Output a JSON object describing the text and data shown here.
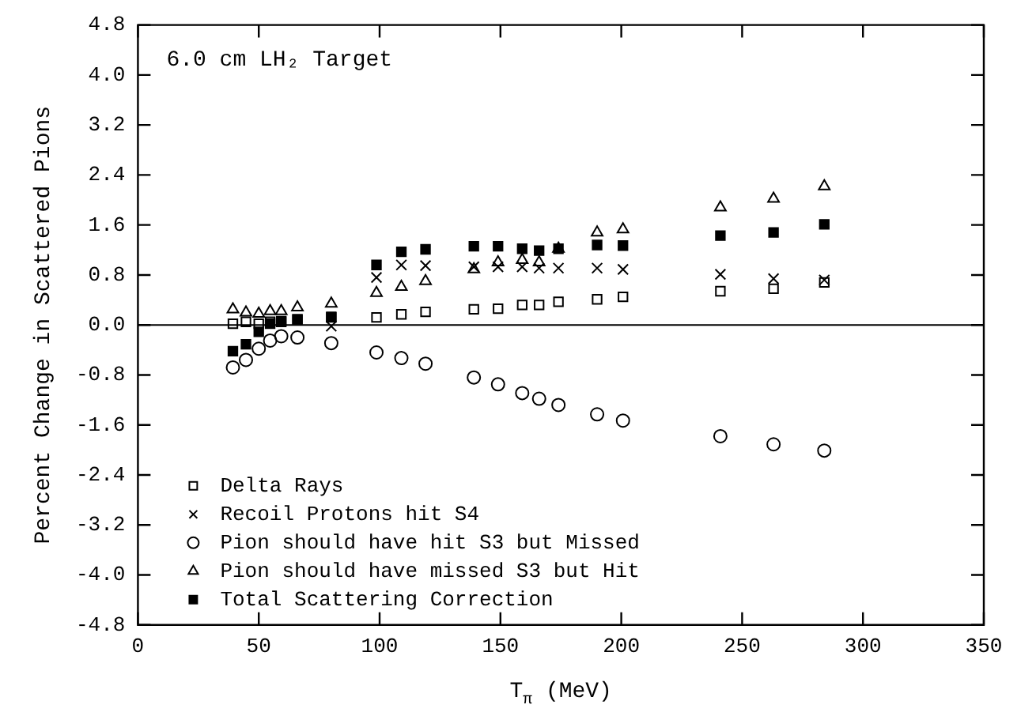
{
  "chart_data": {
    "type": "scatter",
    "title": "6.0 cm LH₂ Target",
    "xlabel": "T$_{π}$ (MeV)",
    "ylabel": "Percent Change in Scattered Pions",
    "x": [
      39.3,
      44.7,
      50,
      54.7,
      59.3,
      66,
      80,
      98.7,
      109,
      119,
      139,
      149,
      159,
      166,
      174,
      190,
      200.7,
      241,
      263,
      284
    ],
    "series": [
      {
        "name": "Delta Rays",
        "color": "#000000",
        "marker": "square",
        "values": [
          0.02,
          0.05,
          0.02,
          0.05,
          0.06,
          0.09,
          0.12,
          0.12,
          0.17,
          0.21,
          0.25,
          0.26,
          0.32,
          0.32,
          0.37,
          0.41,
          0.45,
          0.54,
          0.58,
          0.68
        ]
      },
      {
        "name": "Recoil Protons hit S4",
        "color": "#000000",
        "marker": "cross",
        "values": [
          null,
          null,
          null,
          null,
          null,
          null,
          -0.02,
          0.76,
          0.96,
          0.95,
          0.93,
          0.93,
          0.93,
          0.91,
          0.91,
          0.91,
          0.89,
          0.81,
          0.74,
          0.72
        ]
      },
      {
        "name": "Pion should have hit S3 but Missed",
        "color": "#000000",
        "marker": "circle",
        "values": [
          -0.68,
          -0.56,
          -0.38,
          -0.25,
          -0.18,
          -0.2,
          -0.29,
          -0.44,
          -0.53,
          -0.62,
          -0.84,
          -0.95,
          -1.09,
          -1.18,
          -1.28,
          -1.43,
          -1.53,
          -1.78,
          -1.91,
          -2.01
        ]
      },
      {
        "name": "Pion should have missed S3 but Hit",
        "color": "#000000",
        "marker": "triangle",
        "values": [
          0.25,
          0.2,
          0.18,
          0.22,
          0.22,
          0.28,
          0.34,
          0.51,
          0.61,
          0.7,
          0.89,
          1.0,
          1.04,
          1.0,
          1.22,
          1.48,
          1.53,
          1.88,
          2.02,
          2.22
        ]
      },
      {
        "name": "Total Scattering Correction",
        "color": "#000000",
        "marker": "square",
        "values": [
          -0.42,
          -0.31,
          -0.11,
          0.02,
          0.05,
          0.09,
          0.13,
          0.96,
          1.17,
          1.21,
          1.26,
          1.26,
          1.22,
          1.19,
          1.22,
          1.28,
          1.27,
          1.43,
          1.48,
          1.61
        ]
      }
    ],
    "xlim": [
      0,
      350
    ],
    "xticks": [
      0,
      50,
      100,
      150,
      200,
      250,
      300,
      350
    ],
    "ylim": [
      -4.8,
      4.8
    ],
    "yticks": [
      {
        "value": -4.8,
        "label": "-4.8"
      },
      {
        "value": -4,
        "label": "-4.0"
      },
      {
        "value": -3.2,
        "label": "-3.2"
      },
      {
        "value": -2.4,
        "label": "-2.4"
      },
      {
        "value": -1.6,
        "label": "-1.6"
      },
      {
        "value": -0.8,
        "label": "-0.8"
      },
      {
        "value": 0,
        "label": "0.0"
      },
      {
        "value": 0.8,
        "label": "0.8"
      },
      {
        "value": 1.6,
        "label": "1.6"
      },
      {
        "value": 2.4,
        "label": "2.4"
      },
      {
        "value": 3.2,
        "label": "3.2"
      },
      {
        "value": 4,
        "label": "4.0"
      },
      {
        "value": 4.8,
        "label": "4.8"
      }
    ],
    "ref_lines": [
      {
        "axis": "y",
        "value": 0,
        "color": "#000000"
      }
    ],
    "grid": false,
    "legend": "bottom left"
  }
}
